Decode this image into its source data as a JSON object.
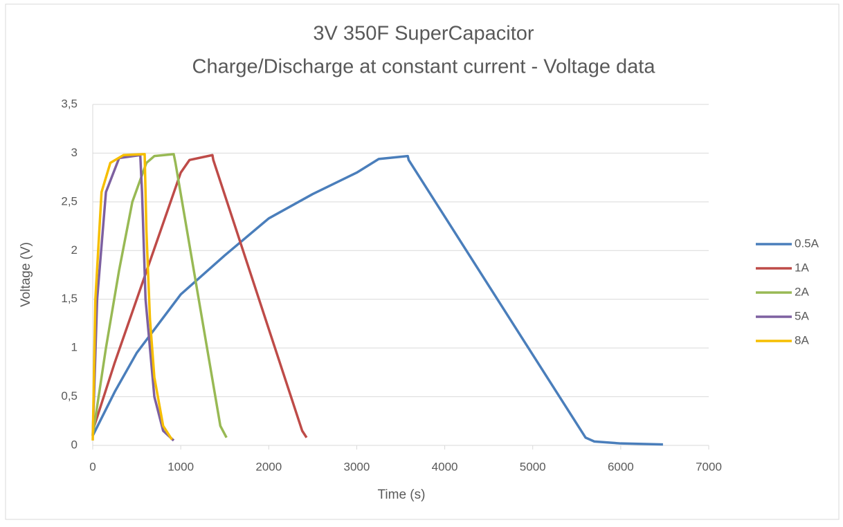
{
  "chart_data": {
    "type": "line",
    "title": "3V 350F SuperCapacitor",
    "subtitle": "Charge/Discharge at constant current - Voltage data",
    "xlabel": "Time (s)",
    "ylabel": "Voltage (V)",
    "xlim": [
      0,
      7000
    ],
    "xticks": [
      0,
      1000,
      2000,
      3000,
      4000,
      5000,
      6000,
      7000
    ],
    "ylim": [
      0,
      3.5
    ],
    "yticks": [
      0,
      {
        "value": 0.5,
        "label": "0,5"
      },
      1,
      {
        "value": 1.5,
        "label": "1,5"
      },
      2,
      {
        "value": 2.5,
        "label": "2,5"
      },
      3,
      {
        "value": 3.5,
        "label": "3,5"
      }
    ],
    "grid": true,
    "legend": "right",
    "series": [
      {
        "name": "0.5A",
        "color": "#4a7ebb",
        "x": [
          0,
          250,
          500,
          1000,
          1500,
          2000,
          2500,
          3000,
          3250,
          3580,
          3590,
          5600,
          5700,
          6000,
          6480
        ],
        "values": [
          0.1,
          0.55,
          0.95,
          1.55,
          1.95,
          2.33,
          2.58,
          2.8,
          2.94,
          2.97,
          2.93,
          0.08,
          0.04,
          0.02,
          0.01
        ]
      },
      {
        "name": "1A",
        "color": "#be4b48",
        "x": [
          0,
          250,
          500,
          750,
          1000,
          1100,
          1360,
          1370,
          2380,
          2430
        ],
        "values": [
          0.15,
          0.85,
          1.5,
          2.15,
          2.8,
          2.93,
          2.98,
          2.93,
          0.15,
          0.08
        ]
      },
      {
        "name": "2A",
        "color": "#98b954",
        "x": [
          0,
          150,
          300,
          450,
          610,
          700,
          920,
          940,
          1450,
          1520
        ],
        "values": [
          0.1,
          1.0,
          1.8,
          2.5,
          2.9,
          2.97,
          2.99,
          2.9,
          0.2,
          0.08
        ]
      },
      {
        "name": "5A",
        "color": "#7d60a0",
        "x": [
          0,
          50,
          150,
          300,
          540,
          560,
          600,
          700,
          800,
          920
        ],
        "values": [
          0.1,
          1.5,
          2.6,
          2.95,
          2.98,
          2.6,
          1.5,
          0.5,
          0.15,
          0.05
        ]
      },
      {
        "name": "8A",
        "color": "#f6be00",
        "x": [
          0,
          30,
          100,
          200,
          350,
          590,
          610,
          650,
          700,
          800,
          900
        ],
        "values": [
          0.05,
          1.5,
          2.6,
          2.9,
          2.98,
          2.99,
          2.2,
          1.3,
          0.7,
          0.2,
          0.06
        ]
      }
    ]
  }
}
